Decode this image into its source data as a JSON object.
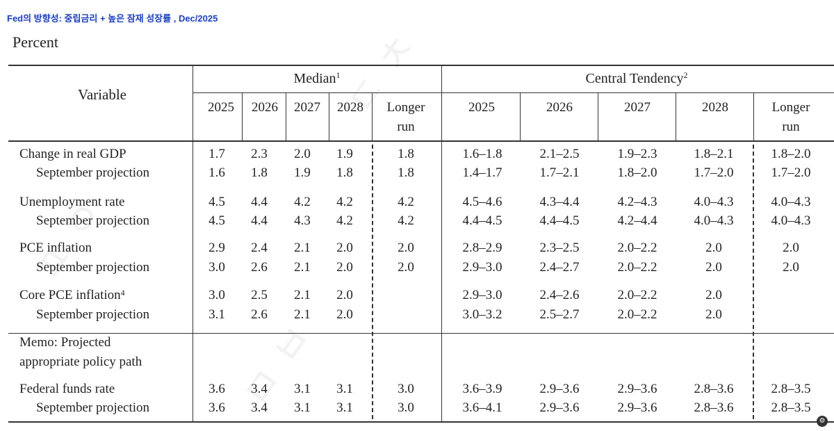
{
  "page_title": "Fed의 방향성: 중립금리 + 높은 잠재 성장률 , Dec/2025",
  "units_label": "Percent",
  "header": {
    "variable": "Variable",
    "median": "Median",
    "median_note": "1",
    "central_tendency": "Central Tendency",
    "central_tendency_note": "2",
    "years": [
      "2025",
      "2026",
      "2027",
      "2028"
    ],
    "longer_run_line1": "Longer",
    "longer_run_line2": "run"
  },
  "rows": [
    {
      "label": "Change in real GDP",
      "median": [
        "1.7",
        "2.3",
        "2.0",
        "1.9",
        "1.8"
      ],
      "central": [
        "1.6–1.8",
        "2.1–2.5",
        "1.9–2.3",
        "1.8–2.1",
        "1.8–2.0"
      ]
    },
    {
      "label": "September projection",
      "median": [
        "1.6",
        "1.8",
        "1.9",
        "1.8",
        "1.8"
      ],
      "central": [
        "1.4–1.7",
        "1.7–2.1",
        "1.8–2.0",
        "1.7–2.0",
        "1.7–2.0"
      ]
    },
    {
      "label": "Unemployment rate",
      "median": [
        "4.5",
        "4.4",
        "4.2",
        "4.2",
        "4.2"
      ],
      "central": [
        "4.5–4.6",
        "4.3–4.4",
        "4.2–4.3",
        "4.0–4.3",
        "4.0–4.3"
      ]
    },
    {
      "label": "September projection",
      "median": [
        "4.5",
        "4.4",
        "4.3",
        "4.2",
        "4.2"
      ],
      "central": [
        "4.4–4.5",
        "4.4–4.5",
        "4.2–4.4",
        "4.0–4.3",
        "4.0–4.3"
      ]
    },
    {
      "label": "PCE inflation",
      "median": [
        "2.9",
        "2.4",
        "2.1",
        "2.0",
        "2.0"
      ],
      "central": [
        "2.8–2.9",
        "2.3–2.5",
        "2.0–2.2",
        "2.0",
        "2.0"
      ]
    },
    {
      "label": "September projection",
      "median": [
        "3.0",
        "2.6",
        "2.1",
        "2.0",
        "2.0"
      ],
      "central": [
        "2.9–3.0",
        "2.4–2.7",
        "2.0–2.2",
        "2.0",
        "2.0"
      ]
    },
    {
      "label": "Core PCE inflation",
      "note": "4",
      "median": [
        "3.0",
        "2.5",
        "2.1",
        "2.0",
        ""
      ],
      "central": [
        "2.9–3.0",
        "2.4–2.6",
        "2.0–2.2",
        "2.0",
        ""
      ]
    },
    {
      "label": "September projection",
      "median": [
        "3.1",
        "2.6",
        "2.1",
        "2.0",
        ""
      ],
      "central": [
        "3.0–3.2",
        "2.5–2.7",
        "2.0–2.2",
        "2.0",
        ""
      ]
    },
    {
      "label": "Federal funds rate",
      "median": [
        "3.6",
        "3.4",
        "3.1",
        "3.1",
        "3.0"
      ],
      "central": [
        "3.6–3.9",
        "2.9–3.6",
        "2.9–3.6",
        "2.8–3.6",
        "2.8–3.5"
      ]
    },
    {
      "label": "September projection",
      "median": [
        "3.6",
        "3.4",
        "3.1",
        "3.1",
        "3.0"
      ],
      "central": [
        "3.6–4.1",
        "2.9–3.6",
        "2.9–3.6",
        "2.8–3.6",
        "2.8–3.5"
      ]
    }
  ],
  "memo": {
    "line1": "Memo: Projected",
    "line2": "appropriate policy path"
  }
}
